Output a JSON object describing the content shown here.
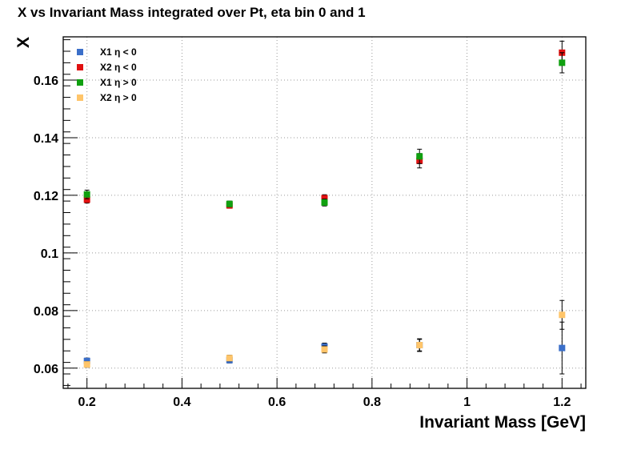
{
  "chart_data": {
    "type": "scatter",
    "title": "X vs Invariant Mass integrated over Pt, eta bin 0 and 1",
    "xlabel": "Invariant Mass [GeV]",
    "ylabel": "X",
    "xlim": [
      0.15,
      1.25
    ],
    "ylim": [
      0.053,
      0.175
    ],
    "x_ticks": [
      0.2,
      0.4,
      0.6,
      0.8,
      1.0,
      1.2
    ],
    "x_tick_labels": [
      "0.2",
      "0.4",
      "0.6",
      "0.8",
      "1",
      "1.2"
    ],
    "y_ticks": [
      0.06,
      0.08,
      0.1,
      0.12,
      0.14,
      0.16
    ],
    "y_tick_labels": [
      "0.06",
      "0.08",
      "0.1",
      "0.12",
      "0.14",
      "0.16"
    ],
    "grid": true,
    "legend_position": "top-left",
    "x": [
      0.2,
      0.5,
      0.7,
      0.9,
      1.2
    ],
    "series": [
      {
        "name": "X1 η < 0",
        "color": "#3b6fc9",
        "values": [
          0.0625,
          0.0628,
          0.0675,
          0.068,
          0.067
        ],
        "errors": [
          0.001,
          0.001,
          0.0012,
          0.002,
          0.009
        ]
      },
      {
        "name": "X2 η < 0",
        "color": "#e01010",
        "values": [
          0.1185,
          0.1165,
          0.119,
          0.132,
          0.1695
        ],
        "errors": [
          0.0012,
          0.001,
          0.0012,
          0.0025,
          0.004
        ]
      },
      {
        "name": "X1 η > 0",
        "color": "#10a010",
        "values": [
          0.1203,
          0.117,
          0.1175,
          0.1335,
          0.166
        ],
        "errors": [
          0.0015,
          0.001,
          0.0012,
          0.0025,
          0.0035
        ]
      },
      {
        "name": "X2 η > 0",
        "color": "#ffc56a",
        "values": [
          0.0613,
          0.0635,
          0.0665,
          0.068,
          0.0785
        ],
        "errors": [
          0.001,
          0.001,
          0.0012,
          0.0022,
          0.005
        ]
      }
    ]
  }
}
